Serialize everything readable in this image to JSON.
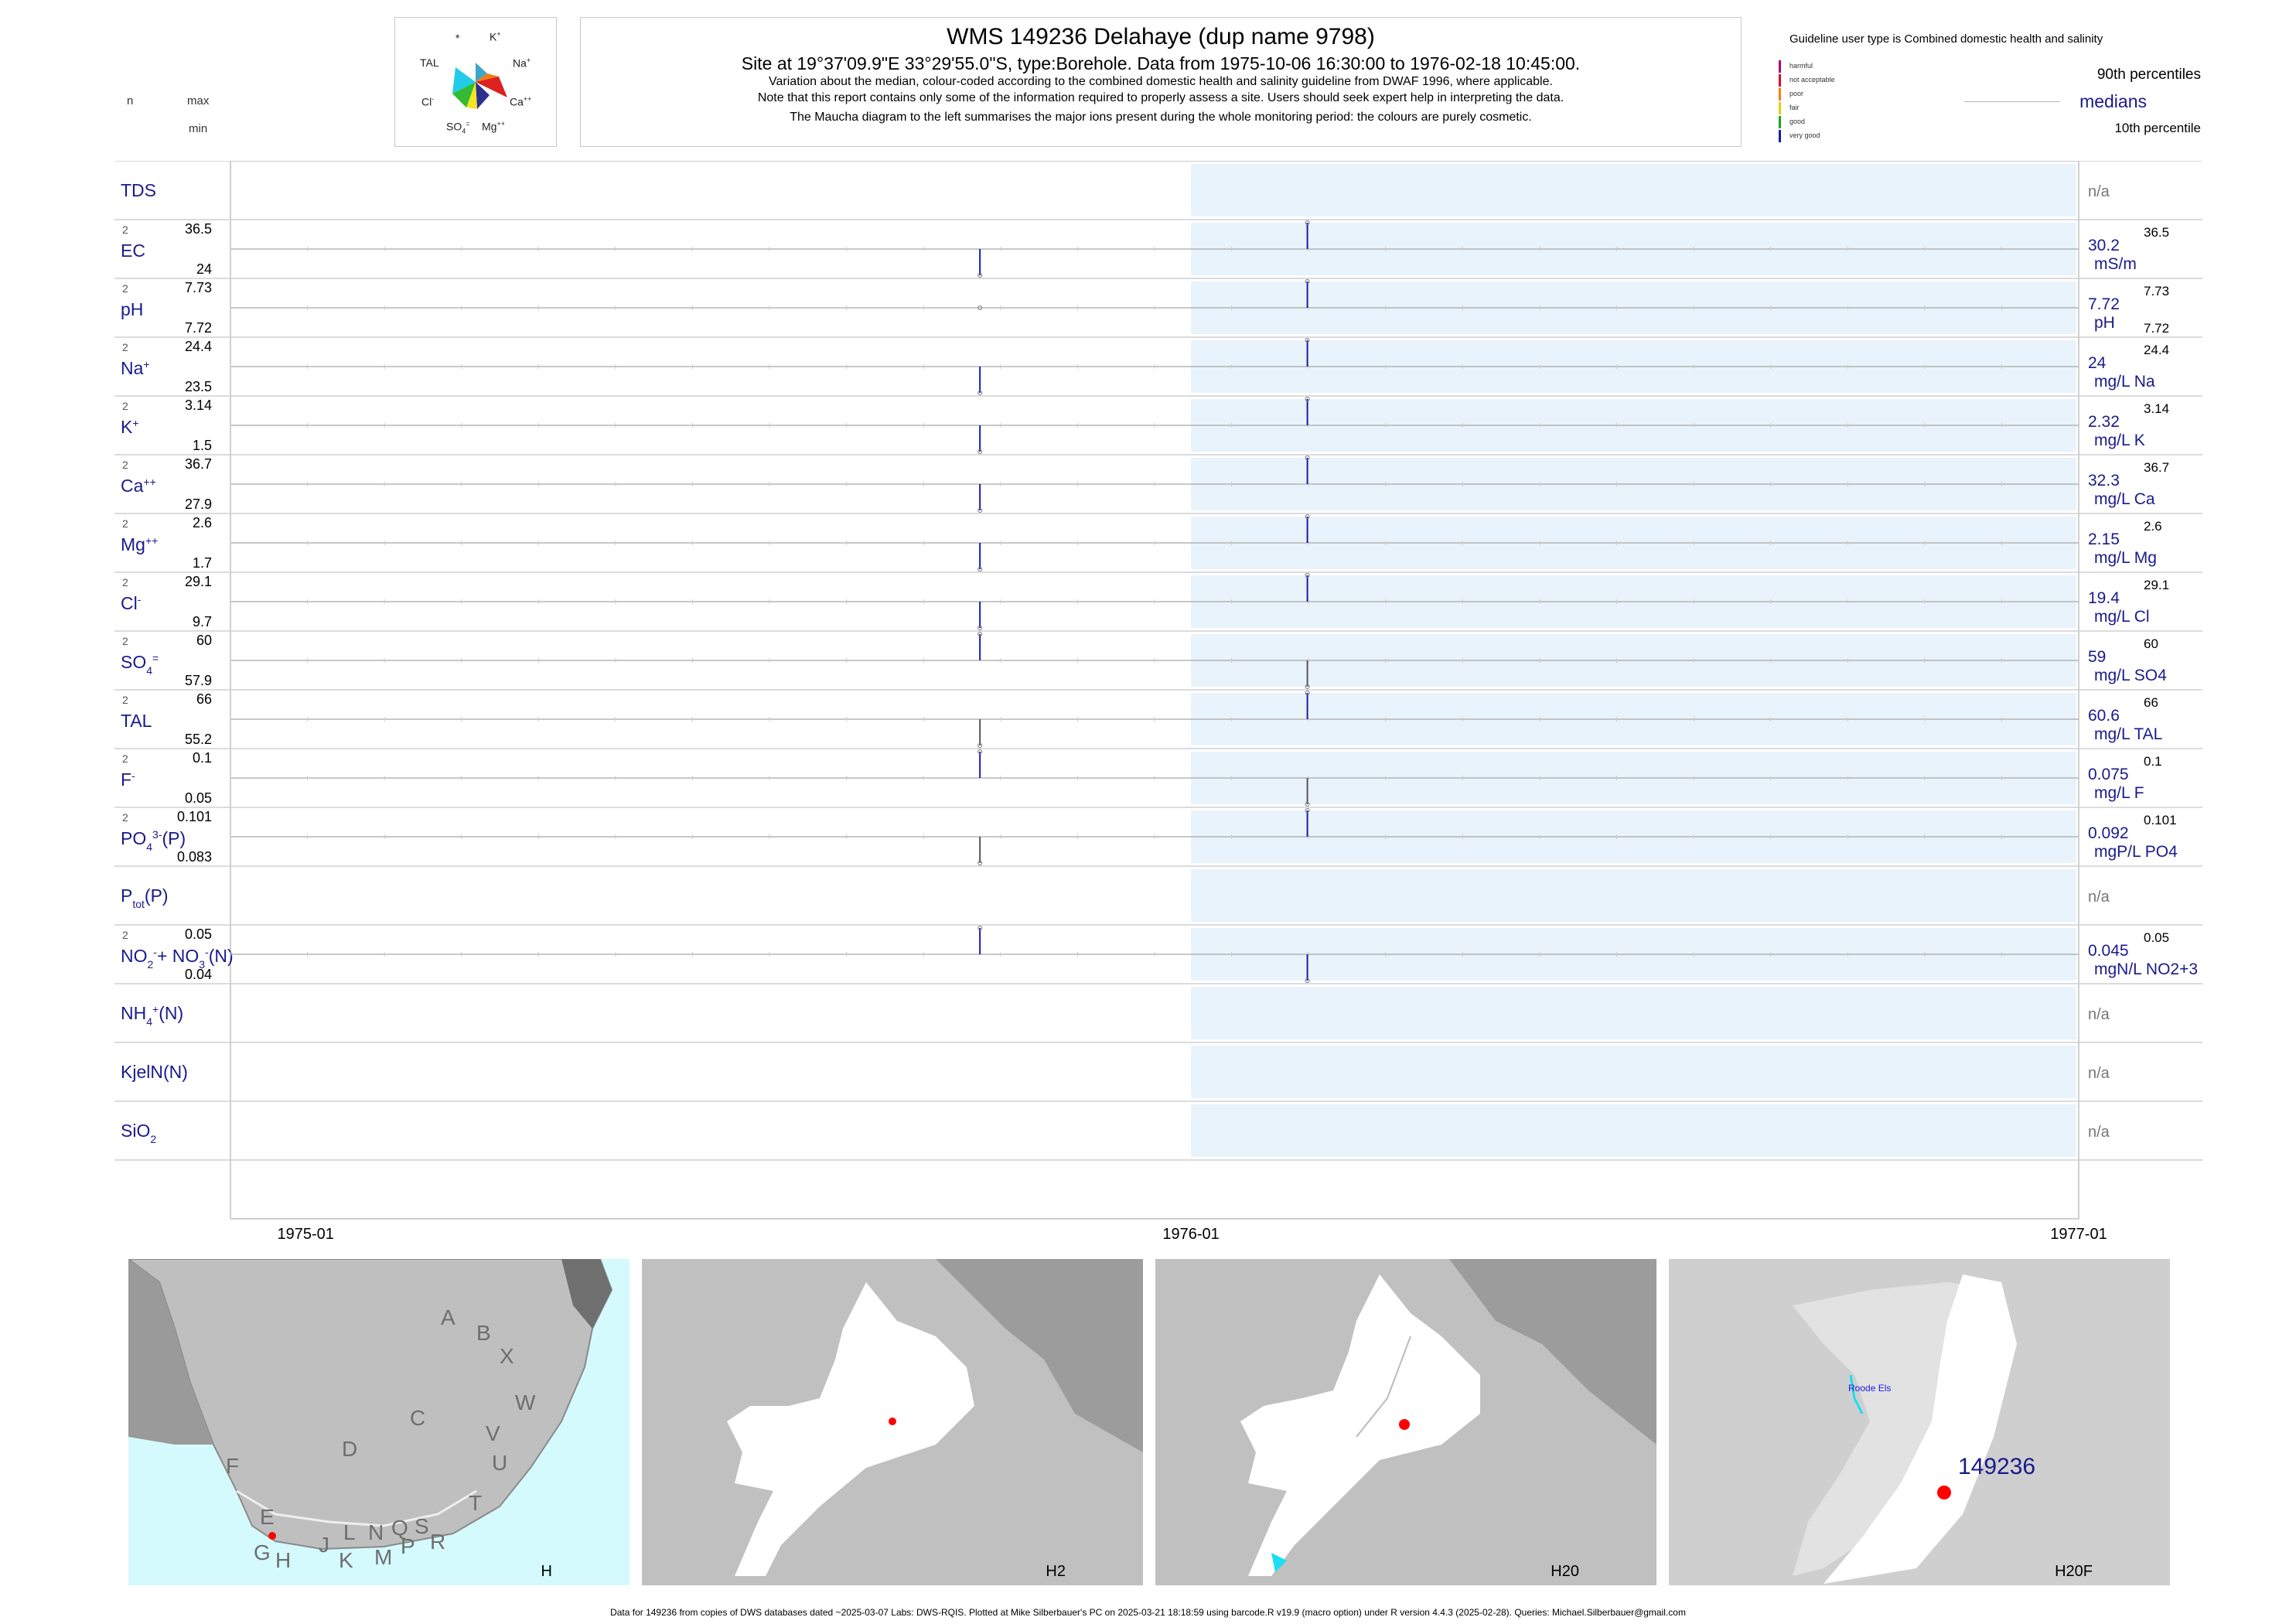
{
  "header": {
    "left_n": "n",
    "left_max": "max",
    "left_min": "min",
    "title": "WMS 149236  Delahaye (dup name 9798)",
    "subtitle": "Site at 19°37'09.9\"E 33°29'55.0\"S, type:Borehole.  Data from 1975-10-06 16:30:00 to 1976-02-18 10:45:00.",
    "line3": "Variation about the median,  colour-coded according to the combined domestic health and salinity guideline from DWAF 1996, where applicable.",
    "line4": "Note that this report contains only some of the information required to properly assess a site. Users should seek expert help in interpreting the data.",
    "line5": "The Maucha diagram to the left summarises the major ions present during the whole monitoring period: the colours are purely cosmetic."
  },
  "maucha": {
    "ions": {
      "star": "*",
      "k": "K",
      "k_sup": "+",
      "na": "Na",
      "na_sup": "+",
      "ca": "Ca",
      "ca_sup": "++",
      "mg": "Mg",
      "mg_sup": "++",
      "so4": "SO",
      "so4_sub": "4",
      "so4_sup": "=",
      "cl": "Cl",
      "cl_sup": "-",
      "tal": "TAL"
    },
    "colors": {
      "k": "#3da6c8",
      "na": "#f07d10",
      "ca": "#dd2020",
      "mg": "#2d2f8f",
      "so4": "#f2e626",
      "cl": "#33bb33",
      "tal": "#22cce6"
    }
  },
  "legend": {
    "guideline_title": "Guideline user type is Combined domestic health and salinity",
    "classes": [
      {
        "label": "harmful",
        "color": "#a8007a"
      },
      {
        "label": "not acceptable",
        "color": "#e0002a"
      },
      {
        "label": "poor",
        "color": "#ff7f00"
      },
      {
        "label": "fair",
        "color": "#e8cc00"
      },
      {
        "label": "good",
        "color": "#1aa81a"
      },
      {
        "label": "very good",
        "color": "#1a1aa8"
      }
    ],
    "p90": "90th percentiles",
    "medians": "medians",
    "p10": "10th percentile"
  },
  "chart_data": {
    "type": "barcode",
    "x_ticks": [
      "1975-01",
      "1976-01",
      "1977-01"
    ],
    "x_range": [
      "1974-12-01",
      "1977-01-01"
    ],
    "shade_range": [
      "1976-01-01",
      "1976-12-31"
    ],
    "sample_dates": [
      "1975-10-06",
      "1976-02-18"
    ],
    "rows": [
      {
        "param": "TDS",
        "na": "n/a"
      },
      {
        "param": "EC",
        "n": "2",
        "max": "36.5",
        "min": "24",
        "median": "30.2",
        "unit": "mS/m",
        "rmax": "36.5",
        "rmin": "",
        "values": [
          24,
          36.5
        ],
        "colors": [
          "#1a1aa8",
          "#1a1aa8"
        ]
      },
      {
        "param": "pH",
        "n": "2",
        "max": "7.73",
        "min": "7.72",
        "median": "7.72",
        "unit": "pH",
        "rmax": "7.73",
        "rmin": "7.72",
        "values": [
          7.72,
          7.73
        ],
        "colors": [
          "#555555",
          "#1a1aa8"
        ]
      },
      {
        "param": "Na",
        "sup": "+",
        "n": "2",
        "max": "24.4",
        "min": "23.5",
        "median": "24",
        "unit": "mg/L Na",
        "rmax": "24.4",
        "rmin": "",
        "values": [
          23.5,
          24.4
        ],
        "colors": [
          "#1a1aa8",
          "#1a1aa8"
        ]
      },
      {
        "param": "K",
        "sup": "+",
        "n": "2",
        "max": "3.14",
        "min": "1.5",
        "median": "2.32",
        "unit": "mg/L K",
        "rmax": "3.14",
        "rmin": "",
        "values": [
          1.5,
          3.14
        ],
        "colors": [
          "#1a1aa8",
          "#1a1aa8"
        ]
      },
      {
        "param": "Ca",
        "sup": "++",
        "n": "2",
        "max": "36.7",
        "min": "27.9",
        "median": "32.3",
        "unit": "mg/L Ca",
        "rmax": "36.7",
        "rmin": "",
        "values": [
          27.9,
          36.7
        ],
        "colors": [
          "#1a1aa8",
          "#1a1aa8"
        ]
      },
      {
        "param": "Mg",
        "sup": "++",
        "n": "2",
        "max": "2.6",
        "min": "1.7",
        "median": "2.15",
        "unit": "mg/L Mg",
        "rmax": "2.6",
        "rmin": "",
        "values": [
          1.7,
          2.6
        ],
        "colors": [
          "#1a1aa8",
          "#1a1aa8"
        ]
      },
      {
        "param": "Cl",
        "sup": "-",
        "n": "2",
        "max": "29.1",
        "min": "9.7",
        "median": "19.4",
        "unit": "mg/L Cl",
        "rmax": "29.1",
        "rmin": "",
        "values": [
          9.7,
          29.1
        ],
        "colors": [
          "#1a1aa8",
          "#1a1aa8"
        ]
      },
      {
        "param": "SO",
        "sub": "4",
        "sup": "=",
        "n": "2",
        "max": "60",
        "min": "57.9",
        "median": "59",
        "unit": "mg/L SO4",
        "rmax": "60",
        "rmin": "",
        "values": [
          60,
          57.9
        ],
        "colors": [
          "#1a1aa8",
          "#555555"
        ]
      },
      {
        "param": "TAL",
        "n": "2",
        "max": "66",
        "min": "55.2",
        "median": "60.6",
        "unit": "mg/L TAL",
        "rmax": "66",
        "rmin": "",
        "values": [
          55.2,
          66
        ],
        "colors": [
          "#555555",
          "#1a1aa8"
        ]
      },
      {
        "param": "F",
        "sup": "-",
        "n": "2",
        "max": "0.1",
        "min": "0.05",
        "median": "0.075",
        "unit": "mg/L F",
        "rmax": "0.1",
        "rmin": "",
        "values": [
          0.1,
          0.05
        ],
        "colors": [
          "#1a1aa8",
          "#555555"
        ]
      },
      {
        "param": "PO",
        "sub": "4",
        "sup": "3-",
        "suffix": "(P)",
        "n": "2",
        "max": "0.101",
        "min": "0.083",
        "median": "0.092",
        "unit": "mgP/L PO4",
        "rmax": "0.101",
        "rmin": "",
        "values": [
          0.083,
          0.101
        ],
        "colors": [
          "#555555",
          "#1a1aa8"
        ]
      },
      {
        "param": "P",
        "sub": "tot",
        "suffix": "(P)",
        "na": "n/a"
      },
      {
        "param": "NO",
        "sub": "2",
        "sup": "-",
        "suffix": "+ NO",
        "sub2": "3",
        "sup2": "-",
        "suffix2": "(N)",
        "n": "2",
        "max": "0.05",
        "min": "0.04",
        "median": "0.045",
        "unit": "mgN/L NO2+3",
        "rmax": "0.05",
        "rmin": "",
        "values": [
          0.05,
          0.04
        ],
        "colors": [
          "#1a1aa8",
          "#1a1aa8"
        ]
      },
      {
        "param": "NH",
        "sub": "4",
        "sup": "+",
        "suffix": "(N)",
        "na": "n/a"
      },
      {
        "param": "KjelN(N)",
        "na": "n/a"
      },
      {
        "param": "SiO",
        "sub": "2",
        "na": "n/a"
      }
    ]
  },
  "maps": [
    {
      "label": "H",
      "letters": [
        "A",
        "B",
        "X",
        "W",
        "C",
        "D",
        "V",
        "U",
        "F",
        "T",
        "E",
        "J",
        "L",
        "N",
        "Q",
        "S",
        "R",
        "G",
        "H",
        "K",
        "M",
        "P"
      ]
    },
    {
      "label": "H2"
    },
    {
      "label": "H20"
    },
    {
      "label": "H20F",
      "site": "149236",
      "place": "Roode Els"
    }
  ],
  "footer": "Data for 149236 from copies of DWS databases dated ~2025-03-07 Labs: DWS-RQIS. Plotted at Mike Silberbauer's PC on 2025-03-21 18:18:59 using barcode.R v19.9 (macro option) under R version 4.4.3 (2025-02-28). Queries: Michael.Silberbauer@gmail.com"
}
